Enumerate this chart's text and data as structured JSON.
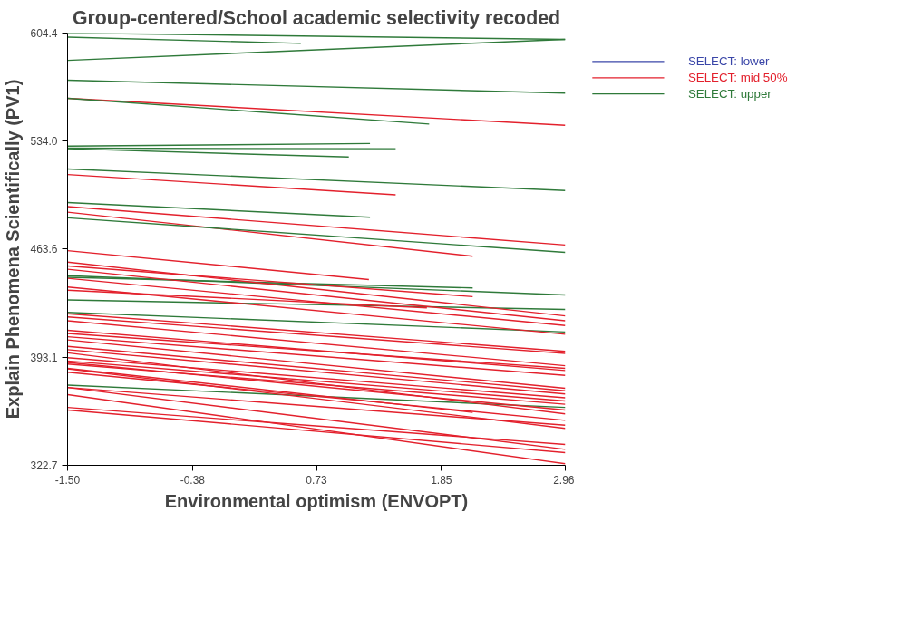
{
  "chart_data": {
    "type": "line",
    "title": "Group-centered/School academic selectivity recoded",
    "xlabel": "Environmental optimism (ENVOPT)",
    "ylabel": "Explain Phenomena Scientifically (PV1)",
    "xlim": [
      -1.5,
      2.96
    ],
    "ylim": [
      322.7,
      604.4
    ],
    "xticks": [
      {
        "value": -1.5,
        "label": "-1.50"
      },
      -0.38,
      0.73,
      1.85,
      2.96
    ],
    "yticks": [
      322.7,
      393.1,
      463.6,
      {
        "value": 534,
        "label": "534.0"
      },
      604.4
    ],
    "grid": false,
    "legend": "top right",
    "line_style": "solid",
    "marker": "none",
    "series": [
      {
        "name": "SELECT: lower",
        "color": "#3a46a8"
      },
      {
        "name": "SELECT: mid 50%",
        "color": "#e3202c",
        "x": [
          -1.5,
          2.96
        ],
        "values": [
          561.9,
          544.3
        ]
      },
      {
        "name": "SELECT: upper",
        "color": "#2f7a3a",
        "x": [
          -1.5,
          2.96
        ],
        "values": [
          604.4,
          600.3
        ]
      },
      {
        "color": "#2f7a3a",
        "x": [
          -1.5,
          0.59
        ],
        "values": [
          601.7,
          597.7
        ]
      },
      {
        "color": "#2f7a3a",
        "x": [
          -1.5,
          2.96
        ],
        "values": [
          586.6,
          600.3
        ]
      },
      {
        "color": "#2f7a3a",
        "x": [
          -1.5,
          2.96
        ],
        "values": [
          573.7,
          565.3
        ]
      },
      {
        "color": "#2f7a3a",
        "x": [
          -1.5,
          1.74
        ],
        "values": [
          561.9,
          545.1
        ]
      },
      {
        "color": "#2f7a3a",
        "x": [
          -1.5,
          1.21
        ],
        "values": [
          530.7,
          532.4
        ]
      },
      {
        "color": "#2f7a3a",
        "x": [
          -1.5,
          1.44
        ],
        "values": [
          529.4,
          529.0
        ]
      },
      {
        "color": "#2f7a3a",
        "x": [
          -1.5,
          1.02
        ],
        "values": [
          529.0,
          523.6
        ]
      },
      {
        "color": "#2f7a3a",
        "x": [
          -1.5,
          2.96
        ],
        "values": [
          515.8,
          501.8
        ]
      },
      {
        "color": "#e3202c",
        "x": [
          -1.5,
          1.44
        ],
        "values": [
          512.2,
          499.0
        ]
      },
      {
        "color": "#2f7a3a",
        "x": [
          -1.5,
          1.21
        ],
        "values": [
          494.0,
          484.4
        ]
      },
      {
        "color": "#e3202c",
        "x": [
          -1.5,
          2.96
        ],
        "values": [
          491.3,
          466.3
        ]
      },
      {
        "color": "#e3202c",
        "x": [
          -1.5,
          2.13
        ],
        "values": [
          487.7,
          459.0
        ]
      },
      {
        "color": "#2f7a3a",
        "x": [
          -1.5,
          2.96
        ],
        "values": [
          484.0,
          461.5
        ]
      },
      {
        "color": "#2f7a3a",
        "x": [
          -1.5,
          2.13
        ],
        "values": [
          445.2,
          438.3
        ]
      },
      {
        "color": "#2f7a3a",
        "x": [
          -1.5,
          2.96
        ],
        "values": [
          446.3,
          433.7
        ]
      },
      {
        "color": "#2f7a3a",
        "x": [
          -1.5,
          2.96
        ],
        "values": [
          430.5,
          424.3
        ]
      },
      {
        "color": "#2f7a3a",
        "x": [
          -1.5,
          2.96
        ],
        "values": [
          422.4,
          409.6
        ]
      },
      {
        "color": "#2f7a3a",
        "x": [
          -1.5,
          2.96
        ],
        "values": [
          375.0,
          360.4
        ]
      },
      {
        "color": "#e3202c",
        "x": [
          -1.5,
          1.2
        ],
        "values": [
          462.6,
          443.8
        ]
      },
      {
        "color": "#e3202c",
        "x": [
          -1.5,
          2.96
        ],
        "values": [
          455.1,
          420.1
        ]
      },
      {
        "color": "#e3202c",
        "x": [
          -1.5,
          2.13
        ],
        "values": [
          452.6,
          432.6
        ]
      },
      {
        "color": "#e3202c",
        "x": [
          -1.5,
          2.96
        ],
        "values": [
          450.5,
          416.9
        ]
      },
      {
        "color": "#e3202c",
        "x": [
          -1.5,
          2.96
        ],
        "values": [
          444.6,
          413.8
        ]
      },
      {
        "color": "#e3202c",
        "x": [
          -1.5,
          2.96
        ],
        "values": [
          438.9,
          408.1
        ]
      },
      {
        "color": "#e3202c",
        "x": [
          -1.5,
          1.72
        ],
        "values": [
          436.8,
          425.3
        ]
      },
      {
        "color": "#e3202c",
        "x": [
          -1.5,
          2.96
        ],
        "values": [
          421.5,
          397.0
        ]
      },
      {
        "color": "#e3202c",
        "x": [
          -1.5,
          2.96
        ],
        "values": [
          419.4,
          395.6
        ]
      },
      {
        "color": "#e3202c",
        "x": [
          -1.5,
          2.96
        ],
        "values": [
          416.9,
          387.6
        ]
      },
      {
        "color": "#e3202c",
        "x": [
          -1.5,
          2.96
        ],
        "values": [
          410.7,
          384.5
        ]
      },
      {
        "color": "#e3202c",
        "x": [
          -1.5,
          2.96
        ],
        "values": [
          408.6,
          385.9
        ]
      },
      {
        "color": "#e3202c",
        "x": [
          -1.5,
          2.96
        ],
        "values": [
          406.5,
          381.3
        ]
      },
      {
        "color": "#e3202c",
        "x": [
          -1.5,
          2.96
        ],
        "values": [
          404.4,
          372.9
        ]
      },
      {
        "color": "#e3202c",
        "x": [
          -1.5,
          2.96
        ],
        "values": [
          400.2,
          371.3
        ]
      },
      {
        "color": "#e3202c",
        "x": [
          -1.5,
          2.96
        ],
        "values": [
          398.1,
          369.2
        ]
      },
      {
        "color": "#e3202c",
        "x": [
          -1.5,
          2.96
        ],
        "values": [
          396.0,
          356.2
        ]
      },
      {
        "color": "#e3202c",
        "x": [
          -1.5,
          2.96
        ],
        "values": [
          392.8,
          366.7
        ]
      },
      {
        "color": "#e3202c",
        "x": [
          -1.5,
          2.96
        ],
        "values": [
          390.7,
          364.6
        ]
      },
      {
        "color": "#e3202c",
        "x": [
          -1.5,
          2.96
        ],
        "values": [
          389.7,
          358.7
        ]
      },
      {
        "color": "#e3202c",
        "x": [
          -1.5,
          2.96
        ],
        "values": [
          388.7,
          362.5
        ]
      },
      {
        "color": "#e3202c",
        "x": [
          -1.5,
          2.13
        ],
        "values": [
          385.9,
          357.2
        ]
      },
      {
        "color": "#e3202c",
        "x": [
          -1.5,
          2.96
        ],
        "values": [
          385.5,
          346.8
        ]
      },
      {
        "color": "#e3202c",
        "x": [
          -1.5,
          2.96
        ],
        "values": [
          383.4,
          352.0
        ]
      },
      {
        "color": "#e3202c",
        "x": [
          -1.5,
          2.96
        ],
        "values": [
          373.4,
          348.8
        ]
      },
      {
        "color": "#e3202c",
        "x": [
          -1.5,
          2.96
        ],
        "values": [
          373.4,
          333.1
        ]
      },
      {
        "color": "#e3202c",
        "x": [
          -1.5,
          2.96
        ],
        "values": [
          368.8,
          323.7
        ]
      },
      {
        "color": "#e3202c",
        "x": [
          -1.5,
          2.96
        ],
        "values": [
          360.4,
          336.3
        ]
      },
      {
        "color": "#e3202c",
        "x": [
          -1.5,
          2.96
        ],
        "values": [
          358.7,
          331.0
        ]
      }
    ]
  }
}
